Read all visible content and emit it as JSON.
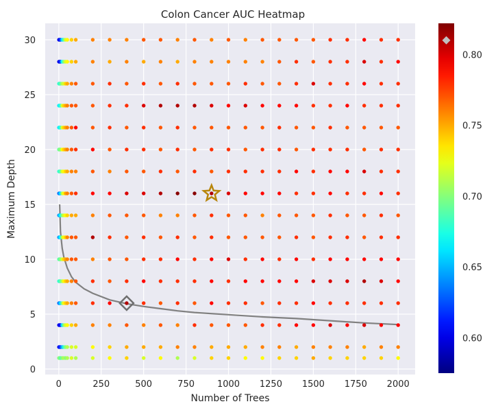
{
  "chart_data": {
    "type": "scatter",
    "title": "Colon Cancer AUC Heatmap",
    "xlabel": "Number of Trees",
    "ylabel": "Maximum Depth",
    "xlim": [
      -80,
      2100
    ],
    "ylim": [
      -0.5,
      31.5
    ],
    "x_ticks": [
      0,
      250,
      500,
      750,
      1000,
      1250,
      1500,
      1750,
      2000
    ],
    "y_ticks": [
      0,
      5,
      10,
      15,
      20,
      25,
      30
    ],
    "x_tick_labels": [
      "0",
      "250",
      "500",
      "750",
      "1000",
      "1250",
      "1500",
      "1750",
      "2000"
    ],
    "y_tick_labels": [
      "0",
      "5",
      "10",
      "15",
      "20",
      "25",
      "30"
    ],
    "grid": true,
    "background": "#eaeaf2",
    "colormap": "jet",
    "color_range": [
      0.575,
      0.822
    ],
    "colorbar_ticks": [
      0.6,
      0.65,
      0.7,
      0.75,
      0.8
    ],
    "colorbar_tick_labels": [
      "0.60",
      "0.65",
      "0.70",
      "0.75",
      "0.80"
    ],
    "n_trees": [
      1,
      5,
      10,
      20,
      30,
      40,
      50,
      75,
      100,
      200,
      300,
      400,
      500,
      600,
      700,
      800,
      900,
      1000,
      1100,
      1200,
      1300,
      1400,
      1500,
      1600,
      1700,
      1800,
      1900,
      2000
    ],
    "max_depths": [
      1,
      2,
      4,
      6,
      8,
      10,
      12,
      14,
      16,
      18,
      20,
      22,
      24,
      26,
      28,
      30
    ],
    "auc_by_depth": [
      {
        "depth": 1,
        "auc": [
          0.7,
          0.7,
          0.69,
          0.7,
          0.71,
          0.7,
          0.71,
          0.72,
          0.71,
          0.72,
          0.73,
          0.74,
          0.72,
          0.73,
          0.71,
          0.72,
          0.74,
          0.74,
          0.73,
          0.73,
          0.74,
          0.74,
          0.75,
          0.74,
          0.74,
          0.74,
          0.74,
          0.73
        ]
      },
      {
        "depth": 2,
        "auc": [
          0.6,
          0.61,
          0.62,
          0.65,
          0.68,
          0.7,
          0.71,
          0.72,
          0.72,
          0.73,
          0.74,
          0.75,
          0.75,
          0.75,
          0.76,
          0.76,
          0.75,
          0.75,
          0.75,
          0.76,
          0.76,
          0.75,
          0.76,
          0.76,
          0.76,
          0.75,
          0.76,
          0.76
        ]
      },
      {
        "depth": 4,
        "auc": [
          0.6,
          0.6,
          0.61,
          0.66,
          0.7,
          0.72,
          0.73,
          0.74,
          0.75,
          0.76,
          0.76,
          0.77,
          0.76,
          0.77,
          0.76,
          0.78,
          0.77,
          0.77,
          0.77,
          0.78,
          0.78,
          0.79,
          0.79,
          0.8,
          0.79,
          0.8,
          0.79,
          0.79
        ]
      },
      {
        "depth": 6,
        "auc": [
          0.63,
          0.64,
          0.66,
          0.7,
          0.73,
          0.74,
          0.75,
          0.76,
          0.77,
          0.78,
          0.79,
          0.81,
          0.78,
          0.77,
          0.78,
          0.77,
          0.79,
          0.78,
          0.78,
          0.77,
          0.78,
          0.78,
          0.79,
          0.78,
          0.78,
          0.78,
          0.78,
          0.78
        ]
      },
      {
        "depth": 8,
        "auc": [
          0.68,
          0.68,
          0.69,
          0.71,
          0.73,
          0.74,
          0.75,
          0.76,
          0.77,
          0.78,
          0.77,
          0.78,
          0.79,
          0.78,
          0.78,
          0.78,
          0.79,
          0.78,
          0.79,
          0.79,
          0.79,
          0.79,
          0.8,
          0.8,
          0.8,
          0.81,
          0.8,
          0.79
        ]
      },
      {
        "depth": 10,
        "auc": [
          0.69,
          0.69,
          0.7,
          0.72,
          0.74,
          0.75,
          0.76,
          0.77,
          0.77,
          0.76,
          0.77,
          0.77,
          0.78,
          0.78,
          0.79,
          0.78,
          0.79,
          0.8,
          0.78,
          0.79,
          0.78,
          0.79,
          0.78,
          0.79,
          0.79,
          0.79,
          0.79,
          0.79
        ]
      },
      {
        "depth": 12,
        "auc": [
          0.64,
          0.65,
          0.67,
          0.71,
          0.73,
          0.74,
          0.76,
          0.77,
          0.77,
          0.81,
          0.78,
          0.77,
          0.78,
          0.77,
          0.78,
          0.77,
          0.78,
          0.77,
          0.77,
          0.77,
          0.77,
          0.78,
          0.77,
          0.78,
          0.78,
          0.77,
          0.78,
          0.78
        ]
      },
      {
        "depth": 14,
        "auc": [
          0.64,
          0.65,
          0.67,
          0.7,
          0.72,
          0.73,
          0.74,
          0.75,
          0.75,
          0.76,
          0.77,
          0.77,
          0.77,
          0.76,
          0.76,
          0.77,
          0.78,
          0.77,
          0.77,
          0.76,
          0.77,
          0.77,
          0.77,
          0.78,
          0.77,
          0.77,
          0.78,
          0.77
        ]
      },
      {
        "depth": 16,
        "auc": [
          0.63,
          0.64,
          0.66,
          0.71,
          0.73,
          0.75,
          0.76,
          0.77,
          0.78,
          0.79,
          0.79,
          0.8,
          0.8,
          0.81,
          0.82,
          0.82,
          0.81,
          0.8,
          0.79,
          0.79,
          0.79,
          0.78,
          0.78,
          0.79,
          0.78,
          0.78,
          0.79,
          0.78
        ]
      },
      {
        "depth": 18,
        "auc": [
          0.68,
          0.68,
          0.69,
          0.72,
          0.73,
          0.74,
          0.75,
          0.76,
          0.76,
          0.77,
          0.76,
          0.77,
          0.77,
          0.78,
          0.77,
          0.78,
          0.77,
          0.78,
          0.78,
          0.78,
          0.78,
          0.79,
          0.78,
          0.79,
          0.79,
          0.8,
          0.78,
          0.78
        ]
      },
      {
        "depth": 20,
        "auc": [
          0.69,
          0.7,
          0.7,
          0.73,
          0.74,
          0.75,
          0.76,
          0.77,
          0.78,
          0.79,
          0.77,
          0.78,
          0.78,
          0.77,
          0.78,
          0.77,
          0.78,
          0.78,
          0.77,
          0.78,
          0.78,
          0.77,
          0.78,
          0.78,
          0.78,
          0.77,
          0.78,
          0.78
        ]
      },
      {
        "depth": 22,
        "auc": [
          0.66,
          0.67,
          0.68,
          0.72,
          0.74,
          0.75,
          0.76,
          0.77,
          0.79,
          0.77,
          0.78,
          0.77,
          0.78,
          0.77,
          0.78,
          0.77,
          0.77,
          0.77,
          0.77,
          0.77,
          0.78,
          0.77,
          0.77,
          0.78,
          0.77,
          0.77,
          0.77,
          0.77
        ]
      },
      {
        "depth": 24,
        "auc": [
          0.66,
          0.67,
          0.68,
          0.72,
          0.74,
          0.75,
          0.76,
          0.77,
          0.77,
          0.77,
          0.78,
          0.78,
          0.8,
          0.81,
          0.81,
          0.81,
          0.8,
          0.79,
          0.8,
          0.79,
          0.79,
          0.79,
          0.78,
          0.78,
          0.79,
          0.78,
          0.78,
          0.78
        ]
      },
      {
        "depth": 26,
        "auc": [
          0.68,
          0.68,
          0.69,
          0.71,
          0.72,
          0.74,
          0.75,
          0.76,
          0.77,
          0.77,
          0.78,
          0.77,
          0.78,
          0.77,
          0.78,
          0.77,
          0.77,
          0.77,
          0.78,
          0.77,
          0.77,
          0.78,
          0.8,
          0.78,
          0.78,
          0.79,
          0.78,
          0.78
        ]
      },
      {
        "depth": 28,
        "auc": [
          0.6,
          0.6,
          0.62,
          0.67,
          0.7,
          0.72,
          0.73,
          0.74,
          0.75,
          0.76,
          0.75,
          0.76,
          0.75,
          0.76,
          0.75,
          0.76,
          0.76,
          0.76,
          0.76,
          0.76,
          0.77,
          0.78,
          0.77,
          0.78,
          0.78,
          0.8,
          0.78,
          0.79
        ]
      },
      {
        "depth": 30,
        "auc": [
          0.6,
          0.6,
          0.62,
          0.66,
          0.69,
          0.72,
          0.73,
          0.74,
          0.75,
          0.76,
          0.76,
          0.76,
          0.77,
          0.77,
          0.76,
          0.77,
          0.76,
          0.77,
          0.76,
          0.77,
          0.77,
          0.77,
          0.77,
          0.78,
          0.78,
          0.79,
          0.78,
          0.78
        ]
      }
    ],
    "trend_curve": {
      "color": "#808080",
      "points": [
        [
          5,
          15
        ],
        [
          10,
          12.5
        ],
        [
          20,
          11
        ],
        [
          30,
          10.2
        ],
        [
          50,
          9.2
        ],
        [
          75,
          8.4
        ],
        [
          100,
          7.9
        ],
        [
          150,
          7.3
        ],
        [
          200,
          6.9
        ],
        [
          300,
          6.3
        ],
        [
          400,
          5.95
        ],
        [
          500,
          5.7
        ],
        [
          600,
          5.5
        ],
        [
          700,
          5.3
        ],
        [
          800,
          5.15
        ],
        [
          1000,
          4.95
        ],
        [
          1200,
          4.75
        ],
        [
          1400,
          4.6
        ],
        [
          1600,
          4.4
        ],
        [
          1800,
          4.2
        ],
        [
          2000,
          4.05
        ]
      ]
    },
    "markers": [
      {
        "shape": "star",
        "x": 900,
        "y": 16,
        "color": "#b8860b"
      },
      {
        "shape": "diamond",
        "x": 400,
        "y": 6,
        "color": "#6e6e6e"
      }
    ],
    "colorbar_marker": {
      "shape": "diamond",
      "value": 0.81,
      "color": "#c0c0c0"
    }
  }
}
